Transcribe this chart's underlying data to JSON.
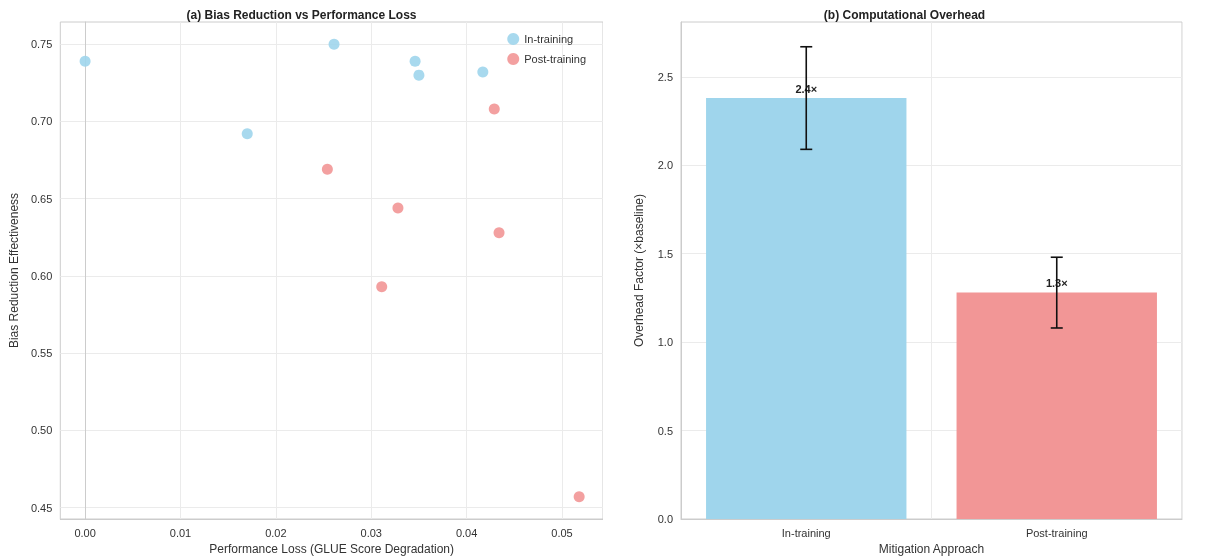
{
  "chart_data": [
    {
      "type": "scatter",
      "title": "(a) Bias Reduction vs Performance Loss",
      "xlabel": "Performance Loss (GLUE Score Degradation)",
      "ylabel": "Bias Reduction Effectiveness",
      "series": [
        {
          "name": "In-training",
          "color": "#9fd5ec",
          "x": [
            0.0,
            0.0261,
            0.017,
            0.0346,
            0.035,
            0.0417
          ],
          "values": [
            0.739,
            0.75,
            0.692,
            0.739,
            0.73,
            0.732
          ]
        },
        {
          "name": "Post-training",
          "color": "#f29696",
          "x": [
            0.0429,
            0.0254,
            0.0328,
            0.0434,
            0.0311,
            0.0518
          ],
          "values": [
            0.708,
            0.669,
            0.644,
            0.628,
            0.593,
            0.457
          ]
        }
      ],
      "xlim": [
        -0.0026,
        0.0543
      ],
      "xticks": [
        {
          "value": 0,
          "label": "0.00"
        },
        {
          "value": 0.01,
          "label": "0.01"
        },
        {
          "value": 0.02,
          "label": "0.02"
        },
        {
          "value": 0.03,
          "label": "0.03"
        },
        {
          "value": 0.04,
          "label": "0.04"
        },
        {
          "value": 0.05,
          "label": "0.05"
        }
      ],
      "ylim": [
        0.4426,
        0.7644
      ],
      "yticks": [
        {
          "value": 0.45,
          "label": "0.45"
        },
        {
          "value": 0.5,
          "label": "0.50"
        },
        {
          "value": 0.55,
          "label": "0.55"
        },
        {
          "value": 0.6,
          "label": "0.60"
        },
        {
          "value": 0.65,
          "label": "0.65"
        },
        {
          "value": 0.7,
          "label": "0.70"
        },
        {
          "value": 0.75,
          "label": "0.75"
        }
      ],
      "grid": true,
      "legend": "top right",
      "marker": "circle"
    },
    {
      "type": "bar",
      "title": "(b) Computational Overhead",
      "xlabel": "Mitigation Approach",
      "ylabel": "Overhead Factor (×baseline)",
      "categories": [
        "In-training",
        "Post-training"
      ],
      "values": [
        2.38,
        1.28
      ],
      "colors": [
        "#9fd5ec",
        "#f29696"
      ],
      "errors": [
        [
          2.09,
          2.67
        ],
        [
          1.08,
          1.48
        ]
      ],
      "value_labels": [
        "2.4×",
        "1.3×"
      ],
      "ylim": [
        0,
        2.81
      ],
      "yticks": [
        {
          "value": 0,
          "label": "0.0"
        },
        {
          "value": 0.5,
          "label": "0.5"
        },
        {
          "value": 1,
          "label": "1.0"
        },
        {
          "value": 1.5,
          "label": "1.5"
        },
        {
          "value": 2,
          "label": "2.0"
        },
        {
          "value": 2.5,
          "label": "2.5"
        }
      ],
      "grid": true,
      "legend": false
    }
  ]
}
